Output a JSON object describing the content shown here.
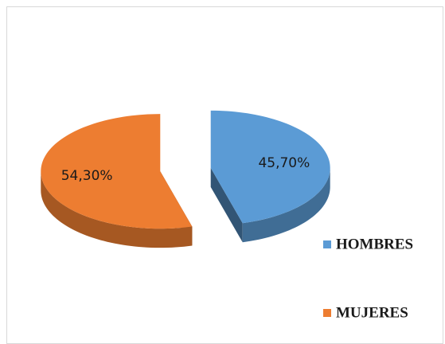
{
  "chart_data": {
    "type": "pie",
    "categories": [
      "HOMBRES",
      "MUJERES"
    ],
    "values": [
      45.7,
      54.3
    ],
    "value_labels": [
      "45,70%",
      "54,30%"
    ],
    "colors": [
      "#5b9bd5",
      "#ed7d31"
    ],
    "legend": "right"
  }
}
